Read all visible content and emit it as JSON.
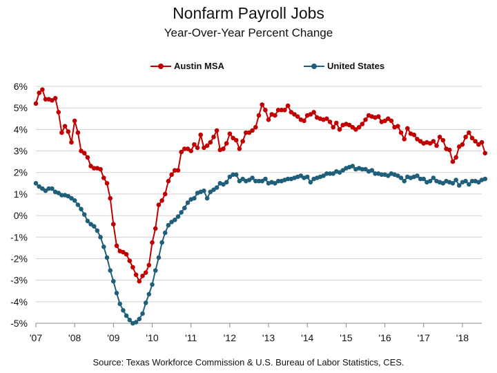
{
  "chart_data": {
    "type": "line",
    "title": "Nonfarm Payroll Jobs",
    "subtitle": "Year-Over-Year Percent Change",
    "source": "Source:  Texas Workforce Commission & U.S. Bureau of Labor Statistics, CES.",
    "ylim": [
      -5,
      6
    ],
    "yticks": [
      "-5%",
      "-4%",
      "-3%",
      "-2%",
      "-1%",
      "0%",
      "1%",
      "2%",
      "3%",
      "4%",
      "5%",
      "6%"
    ],
    "xlim": [
      2007.0,
      2018.5
    ],
    "xticks": [
      "'07",
      "'08",
      "'09",
      "'10",
      "'11",
      "'12",
      "'13",
      "'14",
      "'15",
      "'16",
      "'17",
      "'18"
    ],
    "grid": "horizontal",
    "legend_position": "top-center",
    "start_month": "2007-01",
    "series": [
      {
        "name": "Austin MSA",
        "color": "#c00000",
        "values": [
          5.2,
          5.7,
          5.85,
          5.4,
          5.4,
          5.35,
          5.45,
          4.8,
          3.85,
          4.15,
          3.9,
          3.4,
          4.4,
          3.85,
          3.0,
          2.9,
          2.7,
          2.3,
          2.2,
          2.2,
          2.15,
          1.75,
          1.5,
          0.8,
          -0.4,
          -1.4,
          -1.65,
          -1.7,
          -1.8,
          -2.1,
          -2.4,
          -2.75,
          -3.05,
          -2.8,
          -2.65,
          -2.3,
          -1.25,
          -0.6,
          0.5,
          0.7,
          1.0,
          1.6,
          1.9,
          2.1,
          2.1,
          2.95,
          3.1,
          3.1,
          3.0,
          3.3,
          3.15,
          3.75,
          3.15,
          3.25,
          3.4,
          3.65,
          3.95,
          3.05,
          3.1,
          3.35,
          3.8,
          3.6,
          3.5,
          3.1,
          3.45,
          3.85,
          3.85,
          3.95,
          4.1,
          4.65,
          5.15,
          4.9,
          4.45,
          4.7,
          4.65,
          4.9,
          4.9,
          4.9,
          5.1,
          4.8,
          4.7,
          4.6,
          4.45,
          4.4,
          4.65,
          4.7,
          4.8,
          4.55,
          4.5,
          4.45,
          4.5,
          4.35,
          4.1,
          4.3,
          4.0,
          4.2,
          4.25,
          4.2,
          4.1,
          4.0,
          4.1,
          4.25,
          4.45,
          4.65,
          4.6,
          4.55,
          4.6,
          4.35,
          4.4,
          4.5,
          4.4,
          4.1,
          4.15,
          3.85,
          3.55,
          4.05,
          3.8,
          3.75,
          3.55,
          3.45,
          3.35,
          3.4,
          3.35,
          3.45,
          3.25,
          3.65,
          3.5,
          3.1,
          3.05,
          2.5,
          2.7,
          3.2,
          3.3,
          3.65,
          3.85,
          3.6,
          3.45,
          3.3,
          3.4,
          2.9
        ]
      },
      {
        "name": "United States",
        "color": "#1f5f7a",
        "values": [
          1.5,
          1.35,
          1.25,
          1.15,
          1.25,
          1.25,
          1.1,
          1.05,
          0.95,
          0.95,
          0.9,
          0.8,
          0.7,
          0.5,
          0.3,
          0.05,
          -0.25,
          -0.4,
          -0.5,
          -0.7,
          -1.0,
          -1.45,
          -1.95,
          -2.55,
          -3.05,
          -3.6,
          -4.1,
          -4.4,
          -4.65,
          -4.85,
          -5.0,
          -4.95,
          -4.8,
          -4.55,
          -4.05,
          -3.65,
          -3.2,
          -2.55,
          -1.95,
          -1.25,
          -0.8,
          -0.45,
          -0.3,
          -0.2,
          -0.05,
          0.15,
          0.35,
          0.6,
          0.75,
          0.8,
          1.05,
          1.1,
          1.15,
          0.8,
          1.1,
          1.2,
          1.3,
          1.5,
          1.45,
          1.55,
          1.8,
          1.9,
          1.9,
          1.6,
          1.7,
          1.6,
          1.65,
          1.75,
          1.6,
          1.6,
          1.6,
          1.7,
          1.5,
          1.55,
          1.5,
          1.6,
          1.6,
          1.65,
          1.7,
          1.7,
          1.75,
          1.8,
          1.85,
          1.75,
          1.8,
          1.55,
          1.7,
          1.75,
          1.8,
          1.85,
          1.95,
          1.95,
          1.95,
          2.05,
          2.0,
          2.1,
          2.2,
          2.25,
          2.3,
          2.15,
          2.2,
          2.15,
          2.15,
          2.05,
          2.1,
          1.95,
          1.95,
          1.9,
          1.9,
          1.85,
          1.95,
          1.9,
          1.85,
          1.75,
          1.6,
          1.8,
          1.75,
          1.8,
          1.85,
          1.7,
          1.7,
          1.55,
          1.6,
          1.75,
          1.6,
          1.55,
          1.5,
          1.6,
          1.55,
          1.5,
          1.65,
          1.4,
          1.55,
          1.6,
          1.45,
          1.6,
          1.6,
          1.55,
          1.65,
          1.7
        ]
      }
    ]
  }
}
